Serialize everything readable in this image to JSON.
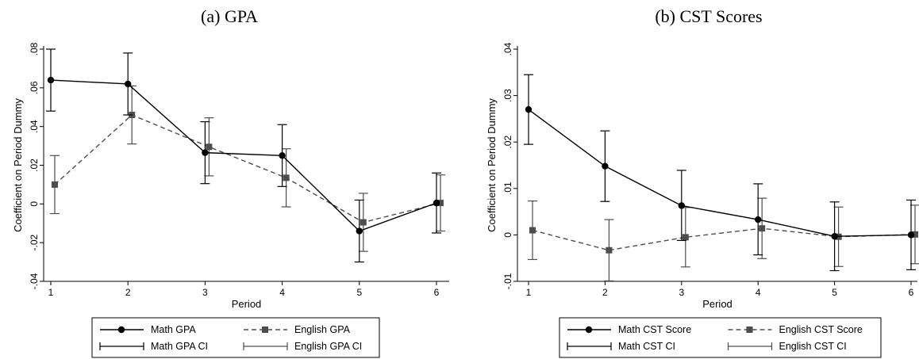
{
  "chart_data": [
    {
      "type": "line",
      "title": "(a) GPA",
      "xlabel": "Period",
      "ylabel": "Coefficient on Period Dummy",
      "x": [
        1,
        2,
        3,
        4,
        5,
        6
      ],
      "xticks": [
        "1",
        "2",
        "3",
        "4",
        "5",
        "6"
      ],
      "ylim": [
        -0.04,
        0.08
      ],
      "yticks": [
        -0.04,
        -0.02,
        0,
        0.02,
        0.04,
        0.06,
        0.08
      ],
      "ytick_labels": [
        "-.04",
        "-.02",
        "0",
        ".02",
        ".04",
        ".06",
        ".08"
      ],
      "series": [
        {
          "name": "Math GPA",
          "ci_name": "Math GPA CI",
          "style": "solid",
          "marker": "circle",
          "values": [
            0.064,
            0.062,
            0.0265,
            0.025,
            -0.014,
            0.0005
          ],
          "ci_low": [
            0.048,
            0.046,
            0.0105,
            0.009,
            -0.03,
            -0.015
          ],
          "ci_high": [
            0.08,
            0.078,
            0.0425,
            0.041,
            0.002,
            0.016
          ]
        },
        {
          "name": "English GPA",
          "ci_name": "English GPA CI",
          "style": "dashed",
          "marker": "square",
          "values": [
            0.01,
            0.046,
            0.0295,
            0.0135,
            -0.0095,
            0.0005
          ],
          "ci_low": [
            -0.005,
            0.031,
            0.0145,
            -0.0015,
            -0.0245,
            -0.014
          ],
          "ci_high": [
            0.025,
            0.061,
            0.0445,
            0.0285,
            0.0055,
            0.015
          ]
        }
      ],
      "legend": "bottom"
    },
    {
      "type": "line",
      "title": "(b) CST Scores",
      "xlabel": "Period",
      "ylabel": "Coefficient on Period Dummy",
      "x": [
        1,
        2,
        3,
        4,
        5,
        6
      ],
      "xticks": [
        "1",
        "2",
        "3",
        "4",
        "5",
        "6"
      ],
      "ylim": [
        -0.01,
        0.04
      ],
      "yticks": [
        -0.01,
        0,
        0.01,
        0.02,
        0.03,
        0.04
      ],
      "ytick_labels": [
        "-.01",
        "0",
        ".01",
        ".02",
        ".03",
        ".04"
      ],
      "series": [
        {
          "name": "Math CST Score",
          "ci_name": "Math CST CI",
          "style": "solid",
          "marker": "circle",
          "values": [
            0.027,
            0.0148,
            0.0063,
            0.0033,
            -0.0003,
            0.0
          ],
          "ci_low": [
            0.0195,
            0.0072,
            -0.0012,
            -0.0043,
            -0.0077,
            -0.0075
          ],
          "ci_high": [
            0.0345,
            0.0224,
            0.0139,
            0.011,
            0.0071,
            0.0075
          ]
        },
        {
          "name": "English CST Score",
          "ci_name": "English CST CI",
          "style": "dashed",
          "marker": "square",
          "values": [
            0.001,
            -0.0033,
            -0.0005,
            0.0014,
            -0.0004,
            0.0001
          ],
          "ci_low": [
            -0.0053,
            -0.0099,
            -0.0069,
            -0.0051,
            -0.0068,
            -0.0062
          ],
          "ci_high": [
            0.0073,
            0.0033,
            0.0059,
            0.0079,
            0.006,
            0.0064
          ]
        }
      ],
      "legend": "bottom"
    }
  ]
}
